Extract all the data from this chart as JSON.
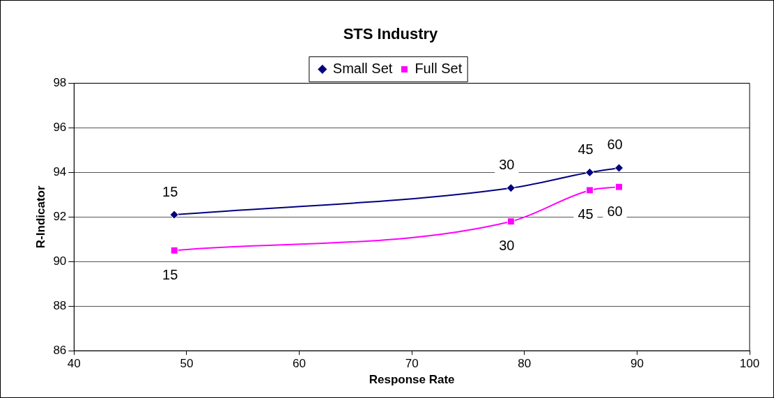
{
  "chart_data": {
    "type": "line",
    "title": "STS Industry",
    "xlabel": "Response Rate",
    "ylabel": "R-Indicator",
    "x": [
      48.9,
      78.8,
      85.8,
      88.4
    ],
    "series": [
      {
        "name": "Small Set",
        "color": "#000080",
        "marker": "diamond",
        "values": [
          92.1,
          93.3,
          94.0,
          94.2
        ]
      },
      {
        "name": "Full Set",
        "color": "#ff00ff",
        "marker": "square",
        "values": [
          90.5,
          91.8,
          93.2,
          93.35
        ]
      }
    ],
    "xlim": [
      40,
      100
    ],
    "xticks": [
      40,
      50,
      60,
      70,
      80,
      90,
      100
    ],
    "ylim": [
      86,
      98
    ],
    "yticks": [
      86,
      88,
      90,
      92,
      94,
      96,
      98
    ],
    "grid": "y",
    "legend": "top",
    "annotations": [
      {
        "text": "15",
        "x": 48.9,
        "y": 92.1
      },
      {
        "text": "30",
        "x": 78.8,
        "y": 93.3
      },
      {
        "text": "45",
        "x": 85.8,
        "y": 94.0
      },
      {
        "text": "60",
        "x": 88.4,
        "y": 94.2
      },
      {
        "text": "15",
        "x": 48.9,
        "y": 90.5
      },
      {
        "text": "30",
        "x": 78.8,
        "y": 91.8
      },
      {
        "text": "45",
        "x": 85.8,
        "y": 93.2
      },
      {
        "text": "60",
        "x": 88.4,
        "y": 93.35
      }
    ]
  }
}
